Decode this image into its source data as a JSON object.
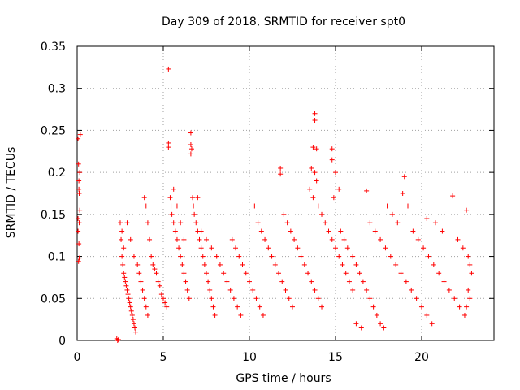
{
  "chart_data": {
    "type": "scatter",
    "title": "Day 309 of 2018, SRMTID for receiver spt0",
    "xlabel": "GPS time / hours",
    "ylabel": "SRMTID / TECUs",
    "xlim": [
      0,
      24.2
    ],
    "ylim": [
      0,
      0.35
    ],
    "xticks": [
      0,
      5,
      10,
      15,
      20
    ],
    "xtick_labels": [
      "0",
      "5",
      "10",
      "15",
      "20"
    ],
    "yticks": [
      0,
      0.05,
      0.1,
      0.15,
      0.2,
      0.25,
      0.3,
      0.35
    ],
    "ytick_labels": [
      "0",
      "0.05",
      "0.1",
      "0.15",
      "0.2",
      "0.25",
      "0.3",
      "0.35"
    ],
    "grid": true,
    "marker": "+",
    "color": "#ff0000",
    "series": [
      {
        "name": "SRMTID",
        "points": [
          [
            0.05,
            0.24
          ],
          [
            0.08,
            0.21
          ],
          [
            0.1,
            0.19
          ],
          [
            0.12,
            0.175
          ],
          [
            0.15,
            0.155
          ],
          [
            0.05,
            0.13
          ],
          [
            0.1,
            0.115
          ],
          [
            0.12,
            0.098
          ],
          [
            0.08,
            0.094
          ],
          [
            0.15,
            0.2
          ],
          [
            0.18,
            0.245
          ],
          [
            0.1,
            0.18
          ],
          [
            0.05,
            0.145
          ],
          [
            0.12,
            0.14
          ],
          [
            2.3,
            0.002
          ],
          [
            2.35,
            0.0
          ],
          [
            2.4,
            0.001
          ],
          [
            2.5,
            0.14
          ],
          [
            2.55,
            0.12
          ],
          [
            2.6,
            0.1
          ],
          [
            2.65,
            0.09
          ],
          [
            2.7,
            0.08
          ],
          [
            2.75,
            0.075
          ],
          [
            2.8,
            0.07
          ],
          [
            2.85,
            0.065
          ],
          [
            2.9,
            0.06
          ],
          [
            2.95,
            0.055
          ],
          [
            3.0,
            0.05
          ],
          [
            3.05,
            0.045
          ],
          [
            3.1,
            0.04
          ],
          [
            3.15,
            0.035
          ],
          [
            3.2,
            0.03
          ],
          [
            3.25,
            0.025
          ],
          [
            3.3,
            0.02
          ],
          [
            3.35,
            0.015
          ],
          [
            3.4,
            0.01
          ],
          [
            2.6,
            0.13
          ],
          [
            2.7,
            0.11
          ],
          [
            2.9,
            0.14
          ],
          [
            3.1,
            0.12
          ],
          [
            3.3,
            0.1
          ],
          [
            3.5,
            0.09
          ],
          [
            3.6,
            0.08
          ],
          [
            3.7,
            0.07
          ],
          [
            3.8,
            0.06
          ],
          [
            3.9,
            0.05
          ],
          [
            4.0,
            0.04
          ],
          [
            4.1,
            0.03
          ],
          [
            3.9,
            0.17
          ],
          [
            4.0,
            0.16
          ],
          [
            4.1,
            0.14
          ],
          [
            4.2,
            0.12
          ],
          [
            4.3,
            0.1
          ],
          [
            4.4,
            0.09
          ],
          [
            4.5,
            0.085
          ],
          [
            4.6,
            0.08
          ],
          [
            4.7,
            0.07
          ],
          [
            4.8,
            0.065
          ],
          [
            4.9,
            0.055
          ],
          [
            5.0,
            0.05
          ],
          [
            5.1,
            0.045
          ],
          [
            5.2,
            0.04
          ],
          [
            5.3,
            0.323
          ],
          [
            5.3,
            0.235
          ],
          [
            5.3,
            0.23
          ],
          [
            5.4,
            0.17
          ],
          [
            5.45,
            0.16
          ],
          [
            5.5,
            0.15
          ],
          [
            5.6,
            0.14
          ],
          [
            5.7,
            0.13
          ],
          [
            5.8,
            0.12
          ],
          [
            5.9,
            0.11
          ],
          [
            6.0,
            0.1
          ],
          [
            6.1,
            0.09
          ],
          [
            6.2,
            0.08
          ],
          [
            6.3,
            0.07
          ],
          [
            6.4,
            0.06
          ],
          [
            6.5,
            0.05
          ],
          [
            5.6,
            0.18
          ],
          [
            5.8,
            0.16
          ],
          [
            6.0,
            0.14
          ],
          [
            6.2,
            0.12
          ],
          [
            6.6,
            0.247
          ],
          [
            6.6,
            0.233
          ],
          [
            6.65,
            0.228
          ],
          [
            6.6,
            0.222
          ],
          [
            6.7,
            0.17
          ],
          [
            6.75,
            0.16
          ],
          [
            6.8,
            0.15
          ],
          [
            6.9,
            0.14
          ],
          [
            7.0,
            0.13
          ],
          [
            7.1,
            0.12
          ],
          [
            7.2,
            0.11
          ],
          [
            7.3,
            0.1
          ],
          [
            7.4,
            0.09
          ],
          [
            7.5,
            0.08
          ],
          [
            7.6,
            0.07
          ],
          [
            7.7,
            0.06
          ],
          [
            7.8,
            0.05
          ],
          [
            7.9,
            0.04
          ],
          [
            8.0,
            0.03
          ],
          [
            7.0,
            0.17
          ],
          [
            7.2,
            0.13
          ],
          [
            7.5,
            0.12
          ],
          [
            7.8,
            0.11
          ],
          [
            8.1,
            0.1
          ],
          [
            8.3,
            0.09
          ],
          [
            8.5,
            0.08
          ],
          [
            8.7,
            0.07
          ],
          [
            8.9,
            0.06
          ],
          [
            9.1,
            0.05
          ],
          [
            9.3,
            0.04
          ],
          [
            9.5,
            0.03
          ],
          [
            9.0,
            0.12
          ],
          [
            9.2,
            0.11
          ],
          [
            9.4,
            0.1
          ],
          [
            9.6,
            0.09
          ],
          [
            9.8,
            0.08
          ],
          [
            10.0,
            0.07
          ],
          [
            10.2,
            0.06
          ],
          [
            10.4,
            0.05
          ],
          [
            10.6,
            0.04
          ],
          [
            10.8,
            0.03
          ],
          [
            10.3,
            0.16
          ],
          [
            10.5,
            0.14
          ],
          [
            10.7,
            0.13
          ],
          [
            10.9,
            0.12
          ],
          [
            11.1,
            0.11
          ],
          [
            11.3,
            0.1
          ],
          [
            11.5,
            0.09
          ],
          [
            11.7,
            0.08
          ],
          [
            11.9,
            0.07
          ],
          [
            12.1,
            0.06
          ],
          [
            12.3,
            0.05
          ],
          [
            12.5,
            0.04
          ],
          [
            11.8,
            0.205
          ],
          [
            11.8,
            0.198
          ],
          [
            12.0,
            0.15
          ],
          [
            12.2,
            0.14
          ],
          [
            12.4,
            0.13
          ],
          [
            12.6,
            0.12
          ],
          [
            12.8,
            0.11
          ],
          [
            13.0,
            0.1
          ],
          [
            13.2,
            0.09
          ],
          [
            13.4,
            0.08
          ],
          [
            13.6,
            0.07
          ],
          [
            13.8,
            0.06
          ],
          [
            14.0,
            0.05
          ],
          [
            14.2,
            0.04
          ],
          [
            13.8,
            0.27
          ],
          [
            13.8,
            0.262
          ],
          [
            13.7,
            0.23
          ],
          [
            13.9,
            0.228
          ],
          [
            13.6,
            0.205
          ],
          [
            13.8,
            0.2
          ],
          [
            13.9,
            0.19
          ],
          [
            13.5,
            0.18
          ],
          [
            13.7,
            0.17
          ],
          [
            14.0,
            0.16
          ],
          [
            14.2,
            0.15
          ],
          [
            14.4,
            0.14
          ],
          [
            14.6,
            0.13
          ],
          [
            14.8,
            0.12
          ],
          [
            15.0,
            0.11
          ],
          [
            15.2,
            0.1
          ],
          [
            15.4,
            0.09
          ],
          [
            15.6,
            0.08
          ],
          [
            15.8,
            0.07
          ],
          [
            16.0,
            0.06
          ],
          [
            14.8,
            0.228
          ],
          [
            14.8,
            0.215
          ],
          [
            15.0,
            0.2
          ],
          [
            15.2,
            0.18
          ],
          [
            14.9,
            0.17
          ],
          [
            15.3,
            0.13
          ],
          [
            15.5,
            0.12
          ],
          [
            15.7,
            0.11
          ],
          [
            16.0,
            0.1
          ],
          [
            16.2,
            0.09
          ],
          [
            16.4,
            0.08
          ],
          [
            16.6,
            0.07
          ],
          [
            16.8,
            0.06
          ],
          [
            17.0,
            0.05
          ],
          [
            17.2,
            0.04
          ],
          [
            17.4,
            0.03
          ],
          [
            17.6,
            0.02
          ],
          [
            17.8,
            0.015
          ],
          [
            16.2,
            0.02
          ],
          [
            16.5,
            0.015
          ],
          [
            16.8,
            0.178
          ],
          [
            17.0,
            0.14
          ],
          [
            17.3,
            0.13
          ],
          [
            17.6,
            0.12
          ],
          [
            17.9,
            0.11
          ],
          [
            18.2,
            0.1
          ],
          [
            18.5,
            0.09
          ],
          [
            18.8,
            0.08
          ],
          [
            19.1,
            0.07
          ],
          [
            19.4,
            0.06
          ],
          [
            19.7,
            0.05
          ],
          [
            20.0,
            0.04
          ],
          [
            20.3,
            0.03
          ],
          [
            20.6,
            0.02
          ],
          [
            18.0,
            0.16
          ],
          [
            18.3,
            0.15
          ],
          [
            18.6,
            0.14
          ],
          [
            18.9,
            0.175
          ],
          [
            19.0,
            0.195
          ],
          [
            19.2,
            0.16
          ],
          [
            19.5,
            0.13
          ],
          [
            19.8,
            0.12
          ],
          [
            20.1,
            0.11
          ],
          [
            20.4,
            0.1
          ],
          [
            20.7,
            0.09
          ],
          [
            21.0,
            0.08
          ],
          [
            21.3,
            0.07
          ],
          [
            21.6,
            0.06
          ],
          [
            21.9,
            0.05
          ],
          [
            22.2,
            0.04
          ],
          [
            22.5,
            0.03
          ],
          [
            20.3,
            0.145
          ],
          [
            20.8,
            0.14
          ],
          [
            21.2,
            0.13
          ],
          [
            21.8,
            0.172
          ],
          [
            22.1,
            0.12
          ],
          [
            22.4,
            0.11
          ],
          [
            22.6,
            0.155
          ],
          [
            22.7,
            0.1
          ],
          [
            22.8,
            0.09
          ],
          [
            22.9,
            0.08
          ],
          [
            22.7,
            0.06
          ],
          [
            22.8,
            0.05
          ],
          [
            22.6,
            0.04
          ]
        ]
      }
    ]
  }
}
